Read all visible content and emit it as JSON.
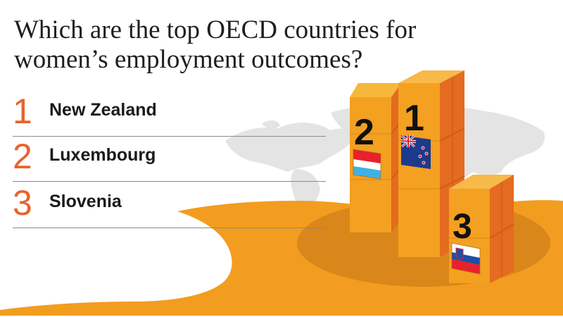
{
  "title": {
    "line1": "Which are the top OECD countries for",
    "line2": "women’s employment outcomes?"
  },
  "ranking": [
    {
      "rank": "1",
      "country": "New Zealand"
    },
    {
      "rank": "2",
      "country": "Luxembourg"
    },
    {
      "rank": "3",
      "country": "Slovenia"
    }
  ],
  "podium": {
    "first_label": "1",
    "second_label": "2",
    "third_label": "3",
    "first_flag": "new-zealand-flag",
    "second_flag": "luxembourg-flag",
    "third_flag": "slovenia-flag"
  },
  "colors": {
    "accent_orange": "#e8642c",
    "sand_orange": "#f29d1f",
    "block_top": "#f7b52e",
    "block_side": "#e06a1e",
    "map_gray": "#e6e6e6"
  }
}
